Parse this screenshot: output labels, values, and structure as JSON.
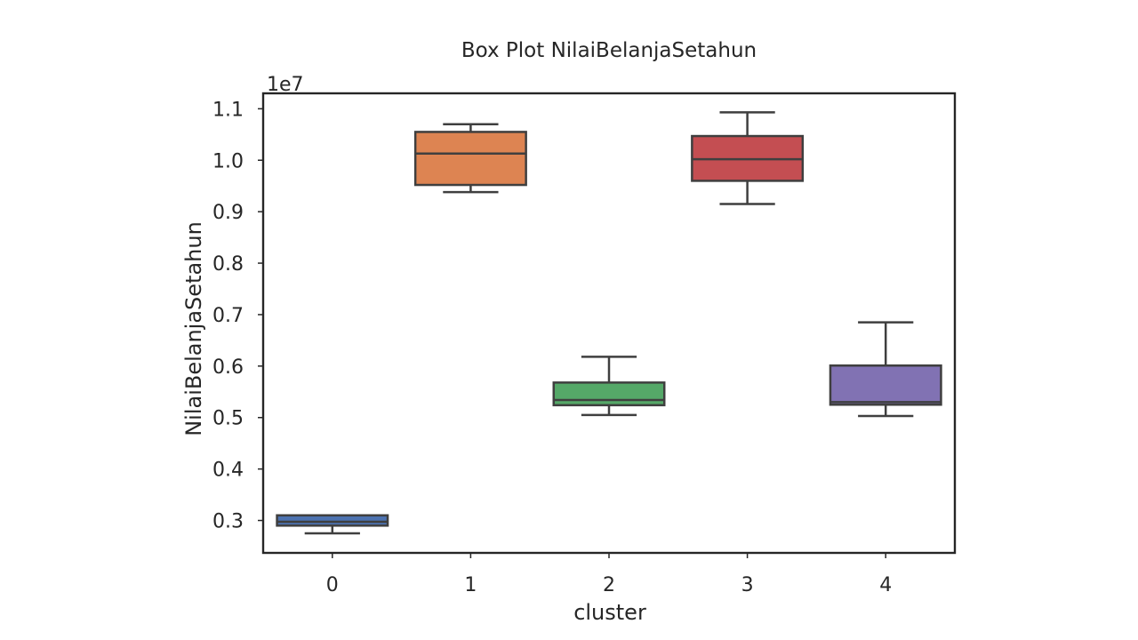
{
  "chart_data": {
    "type": "box",
    "title": "Box Plot NilaiBelanjaSetahun",
    "xlabel": "cluster",
    "ylabel": "NilaiBelanjaSetahun",
    "offset_label": "1e7",
    "y_scale_factor": 10000000,
    "ylim": [
      0.237,
      1.13
    ],
    "yticks": [
      0.3,
      0.4,
      0.5,
      0.6,
      0.7,
      0.8,
      0.9,
      1.0,
      1.1
    ],
    "ytick_labels": [
      "0.3",
      "0.4",
      "0.5",
      "0.6",
      "0.7",
      "0.8",
      "0.9",
      "1.0",
      "1.1"
    ],
    "grid": false,
    "categories": [
      "0",
      "1",
      "2",
      "3",
      "4"
    ],
    "boxes": [
      {
        "category": "0",
        "color": "#4c72b0",
        "whisker_low": 0.275,
        "q1": 0.29,
        "median": 0.2975,
        "q3": 0.31,
        "whisker_high": 0.31
      },
      {
        "category": "1",
        "color": "#dd8452",
        "whisker_low": 0.938,
        "q1": 0.952,
        "median": 1.013,
        "q3": 1.055,
        "whisker_high": 1.07
      },
      {
        "category": "2",
        "color": "#55a868",
        "whisker_low": 0.505,
        "q1": 0.524,
        "median": 0.534,
        "q3": 0.568,
        "whisker_high": 0.618
      },
      {
        "category": "3",
        "color": "#c44e52",
        "whisker_low": 0.915,
        "q1": 0.96,
        "median": 1.002,
        "q3": 1.047,
        "whisker_high": 1.093
      },
      {
        "category": "4",
        "color": "#8172b3",
        "whisker_low": 0.503,
        "q1": 0.525,
        "median": 0.53,
        "q3": 0.601,
        "whisker_high": 0.685
      }
    ]
  }
}
